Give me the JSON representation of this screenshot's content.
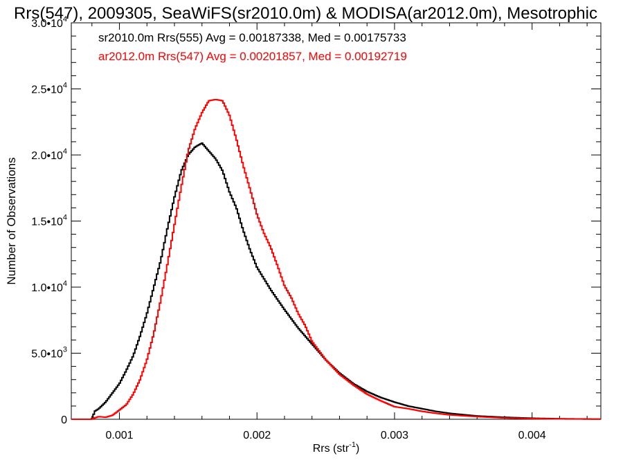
{
  "chart_data": {
    "type": "line",
    "title": "Rrs(547), 2009305, SeaWiFS(sr2010.0m) & MODISA(ar2012.0m), Mesotrophic",
    "xlabel": "Rrs (str",
    "xlabel_sup": "-1",
    "xlabel_suffix": ")",
    "ylabel": "Number of Observations",
    "xlim": [
      0.00065,
      0.0045
    ],
    "ylim": [
      0,
      30000
    ],
    "x_ticks": [
      0.001,
      0.002,
      0.003,
      0.004
    ],
    "x_tick_labels": [
      "0.001",
      "0.002",
      "0.003",
      "0.004"
    ],
    "y_ticks": [
      0,
      5000,
      10000,
      15000,
      20000,
      25000,
      30000
    ],
    "y_tick_labels": [
      {
        "mant": "0",
        "exp": ""
      },
      {
        "mant": "5.0•10",
        "exp": "3"
      },
      {
        "mant": "1.0•10",
        "exp": "4"
      },
      {
        "mant": "1.5•10",
        "exp": "4"
      },
      {
        "mant": "2.0•10",
        "exp": "4"
      },
      {
        "mant": "2.5•10",
        "exp": "4"
      },
      {
        "mant": "3.0•10",
        "exp": "4"
      }
    ],
    "grid": false,
    "legend": "top-left",
    "annotations": [
      {
        "text": "sr2010.0m Rrs(555) Avg = 0.00187338, Med = 0.00175733",
        "color": "#000000"
      },
      {
        "text": "ar2012.0m Rrs(547) Avg = 0.00201857, Med = 0.00192719",
        "color": "#ff0000"
      }
    ],
    "series": [
      {
        "color": "#000000",
        "x": [
          0.00065,
          0.0008,
          0.00082,
          0.00085,
          0.0009,
          0.00095,
          0.001,
          0.00105,
          0.0011,
          0.00115,
          0.0012,
          0.00125,
          0.0013,
          0.00135,
          0.0014,
          0.00145,
          0.0015,
          0.00155,
          0.0016,
          0.00165,
          0.0017,
          0.00175,
          0.0018,
          0.00185,
          0.0019,
          0.00195,
          0.002,
          0.0021,
          0.0022,
          0.0023,
          0.0024,
          0.0025,
          0.0026,
          0.0027,
          0.0028,
          0.0029,
          0.003,
          0.0031,
          0.0032,
          0.0033,
          0.0034,
          0.0035,
          0.0036,
          0.0038,
          0.004,
          0.0042,
          0.0045
        ],
        "values": [
          0,
          0,
          600,
          800,
          1300,
          2000,
          2700,
          3700,
          4800,
          6300,
          8000,
          10000,
          12000,
          14500,
          16800,
          18800,
          20000,
          20600,
          20900,
          20300,
          19700,
          18800,
          17200,
          16000,
          14300,
          12800,
          11500,
          9800,
          8300,
          6900,
          5700,
          4500,
          3500,
          2700,
          2100,
          1650,
          1300,
          1000,
          800,
          600,
          450,
          350,
          250,
          150,
          80,
          40,
          10
        ]
      },
      {
        "color": "#ff0000",
        "x": [
          0.00065,
          0.0008,
          0.00082,
          0.00085,
          0.0009,
          0.00095,
          0.001,
          0.00105,
          0.0011,
          0.00115,
          0.0012,
          0.00125,
          0.0013,
          0.00135,
          0.0014,
          0.00145,
          0.0015,
          0.00155,
          0.0016,
          0.00165,
          0.0017,
          0.00175,
          0.0018,
          0.00185,
          0.0019,
          0.00195,
          0.002,
          0.00205,
          0.0021,
          0.00215,
          0.0022,
          0.00225,
          0.0023,
          0.00235,
          0.0024,
          0.0025,
          0.0026,
          0.0027,
          0.0028,
          0.0029,
          0.003,
          0.0031,
          0.0032,
          0.0033,
          0.0034,
          0.0036,
          0.0038,
          0.004,
          0.0042,
          0.0045
        ],
        "values": [
          0,
          0,
          100,
          200,
          150,
          300,
          700,
          1100,
          1900,
          3000,
          4500,
          6500,
          9000,
          11800,
          14700,
          17600,
          20300,
          22000,
          23200,
          24100,
          24200,
          24100,
          23000,
          21200,
          19200,
          17400,
          15500,
          14100,
          13000,
          11600,
          10100,
          9200,
          8000,
          7100,
          5900,
          4500,
          3400,
          2600,
          1900,
          1400,
          950,
          800,
          600,
          450,
          330,
          200,
          100,
          50,
          25,
          10
        ]
      }
    ]
  }
}
